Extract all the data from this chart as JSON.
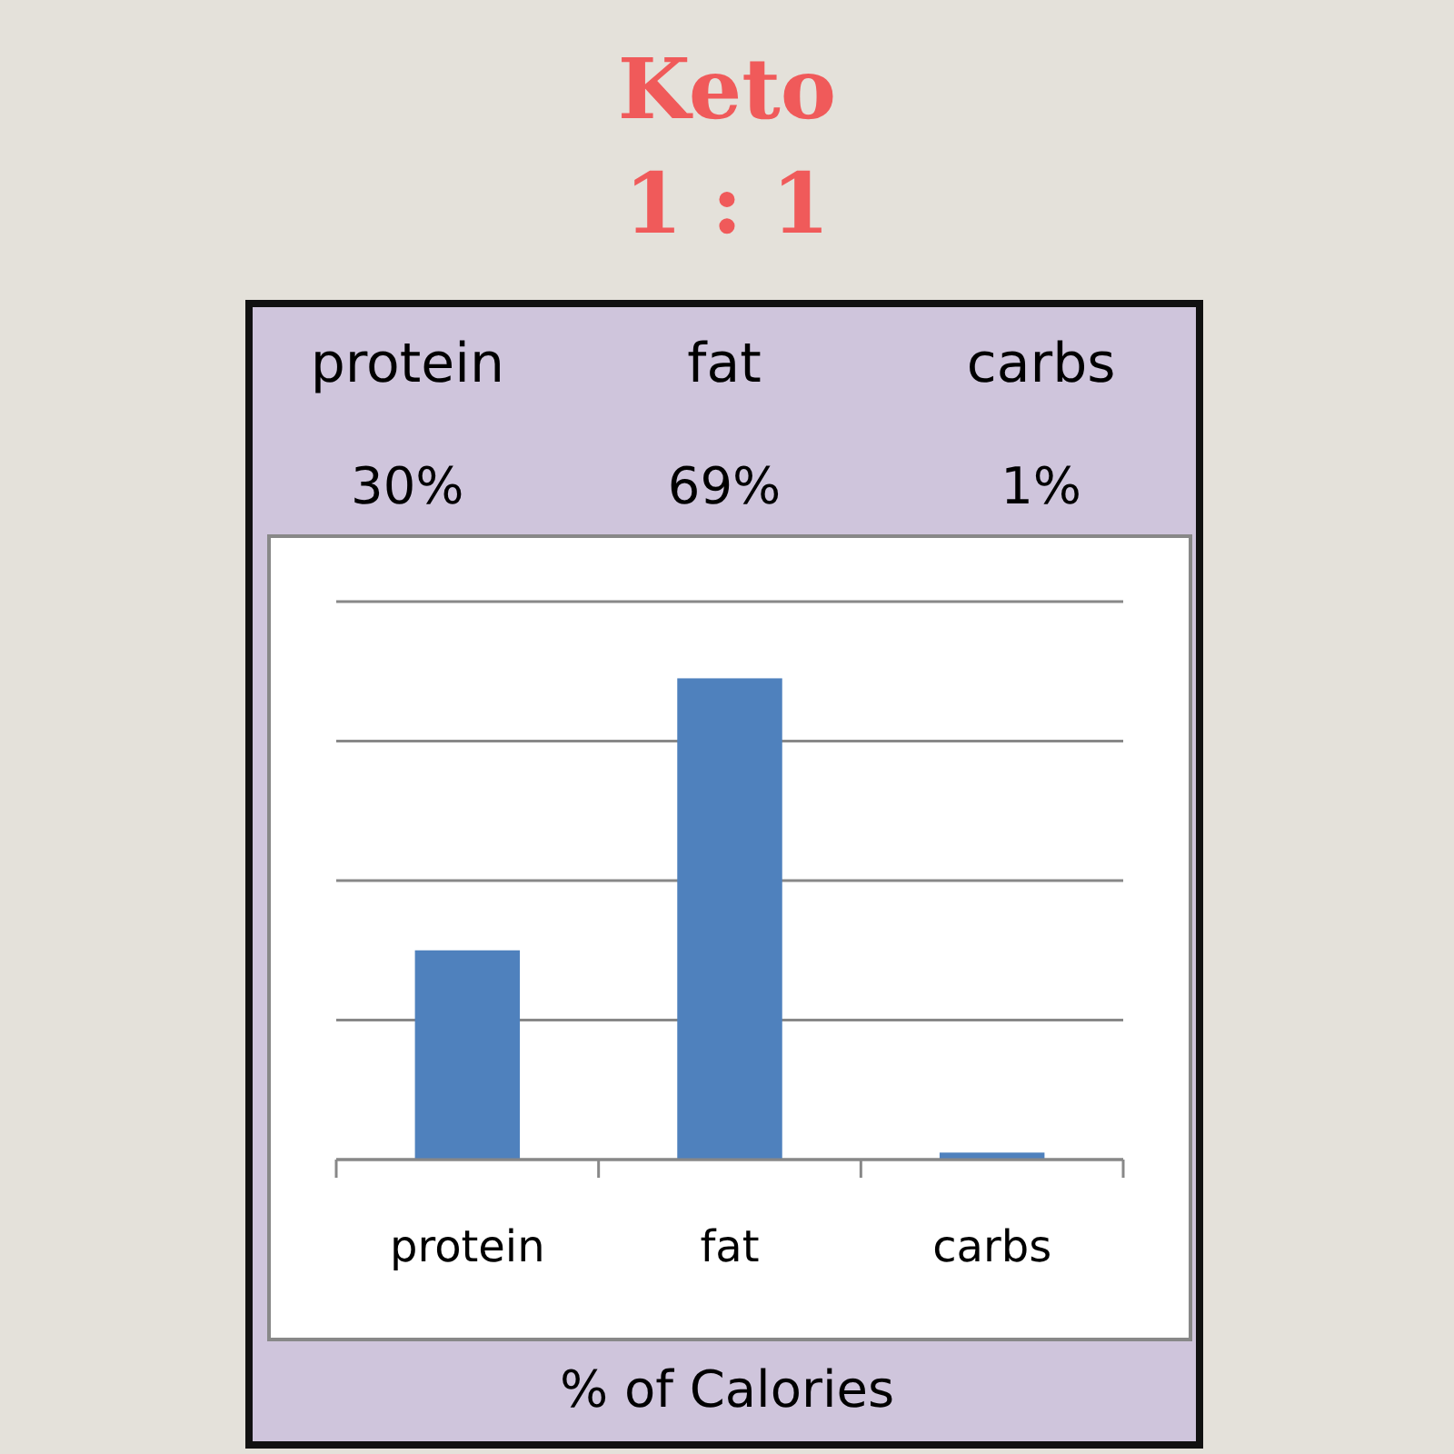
{
  "chart_data": {
    "type": "bar",
    "title": "Keto",
    "subtitle": "1 : 1",
    "xlabel": "% of Calories",
    "categories": [
      "protein",
      "fat",
      "carbs"
    ],
    "values": [
      30,
      69,
      1
    ],
    "color": "#4f81bd",
    "value_labels": [
      "30%",
      "69%",
      "1%"
    ],
    "ylim": [
      0,
      80
    ],
    "yticks": [
      {
        "value": 0,
        "label": null
      },
      {
        "value": 20,
        "label": null
      },
      {
        "value": 40,
        "label": null
      },
      {
        "value": 60,
        "label": null
      },
      {
        "value": 80,
        "label": null
      }
    ],
    "grid": true
  }
}
